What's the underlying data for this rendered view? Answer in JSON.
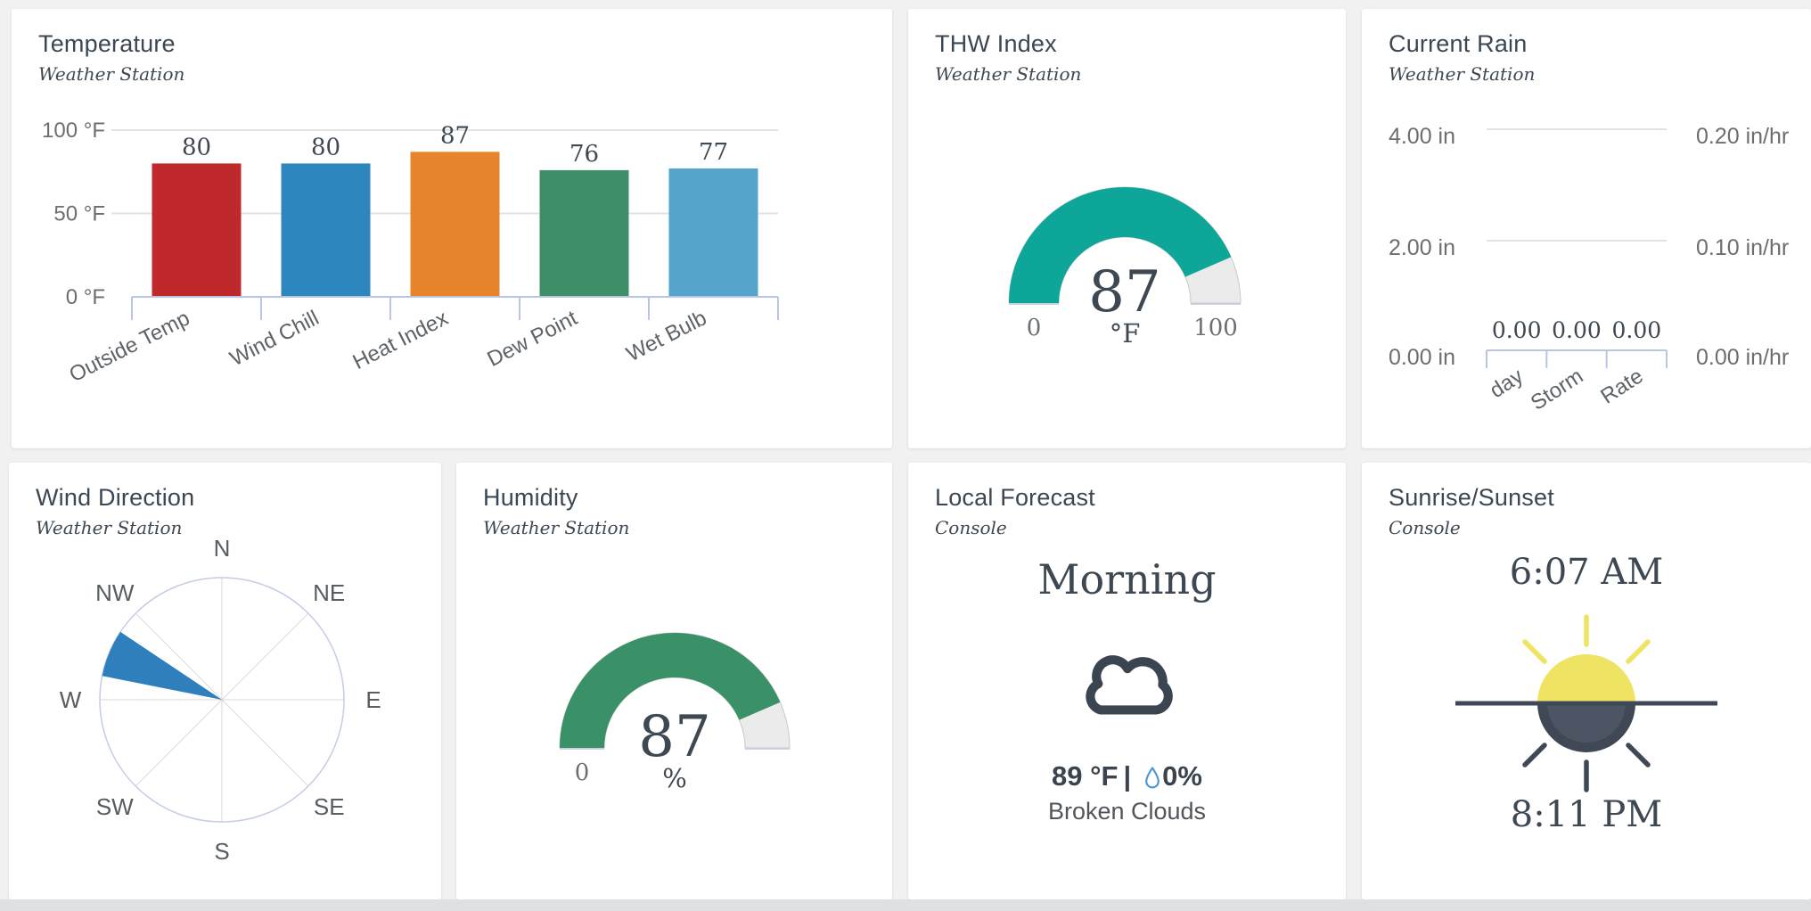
{
  "page": {
    "background_color": "#f1f1f2",
    "bottom_strip_color": "#dfe0e2",
    "card_color": "#ffffff",
    "title_color": "#3c4754",
    "value_color": "#3d4852",
    "axis_label_color": "#6d6e70",
    "axis_line_color": "#b9c6e3"
  },
  "cards": {
    "temperature": {
      "title": "Temperature",
      "subtitle": "Weather Station",
      "chart": {
        "type": "bar",
        "max": 100,
        "y_ticks": [
          {
            "label": "0 °F",
            "value": 0
          },
          {
            "label": "50 °F",
            "value": 50
          },
          {
            "label": "100 °F",
            "value": 100
          }
        ],
        "categories": [
          "Outside Temp",
          "Wind Chill",
          "Heat Index",
          "Dew Point",
          "Wet Bulb"
        ],
        "values": [
          80,
          80,
          87,
          76,
          77
        ],
        "colors": [
          "#c0292c",
          "#2e86bf",
          "#e8852c",
          "#3e8e68",
          "#55a4cb"
        ]
      }
    },
    "thw_index": {
      "title": "THW Index",
      "subtitle": "Weather Station",
      "gauge": {
        "value": 87,
        "min": 0,
        "max": 100,
        "unit": "°F",
        "min_label": "0",
        "max_label": "100",
        "fill_color": "#0fa69a",
        "track_color": "#ebebeb"
      }
    },
    "current_rain": {
      "title": "Current Rain",
      "subtitle": "Weather Station",
      "chart": {
        "rows": [
          {
            "left": "4.00 in",
            "right": "0.20 in/hr"
          },
          {
            "left": "2.00 in",
            "right": "0.10 in/hr"
          },
          {
            "left": "0.00 in",
            "right": "0.00 in/hr"
          }
        ],
        "categories": [
          "day",
          "Storm",
          "Rate"
        ],
        "value_labels": [
          "0.00",
          "0.00",
          "0.00"
        ]
      }
    },
    "wind_direction": {
      "title": "Wind Direction",
      "subtitle": "Weather Station",
      "compass": {
        "directions": [
          "N",
          "NE",
          "E",
          "SE",
          "S",
          "SW",
          "W",
          "NW"
        ],
        "wedge": {
          "from_bearing": 281.25,
          "to_bearing": 303.75,
          "color": "#2e7fbb"
        },
        "circle_color": "#c3cde7"
      }
    },
    "humidity": {
      "title": "Humidity",
      "subtitle": "Weather Station",
      "gauge": {
        "value": 87,
        "min": 0,
        "max": 100,
        "unit": "%",
        "min_label": "0",
        "max_label": null,
        "fill_color": "#3a9168",
        "track_color": "#ebebeb"
      }
    },
    "local_forecast": {
      "title": "Local Forecast",
      "subtitle": "Console",
      "period": "Morning",
      "icon": "cloud-icon",
      "temperature": "89 °F",
      "separator": "|",
      "precip_chance": "0%",
      "condition": "Broken Clouds",
      "drop_color": "#4f97d4",
      "cloud_color": "#3b4552"
    },
    "sunrise_sunset": {
      "title": "Sunrise/Sunset",
      "subtitle": "Console",
      "sunrise": "6:07 AM",
      "sunset": "8:11 PM",
      "sun_yellow": "#efe363",
      "sun_dark": "#3f4856"
    }
  },
  "chart_data": [
    {
      "type": "bar",
      "title": "Temperature",
      "categories": [
        "Outside Temp",
        "Wind Chill",
        "Heat Index",
        "Dew Point",
        "Wet Bulb"
      ],
      "values": [
        80,
        80,
        87,
        76,
        77
      ],
      "ylabel": "°F",
      "ylim": [
        0,
        100
      ],
      "yticks": [
        "0 °F",
        "50 °F",
        "100 °F"
      ],
      "bar_colors": [
        "#c0292c",
        "#2e86bf",
        "#e8852c",
        "#3e8e68",
        "#55a4cb"
      ],
      "grid": true
    },
    {
      "type": "gauge",
      "title": "THW Index",
      "value": 87,
      "min": 0,
      "max": 100,
      "unit": "°F",
      "color": "#0fa69a"
    },
    {
      "type": "bar",
      "title": "Current Rain",
      "categories": [
        "day",
        "Storm",
        "Rate"
      ],
      "values": [
        0.0,
        0.0,
        0.0
      ],
      "data_labels": [
        "0.00",
        "0.00",
        "0.00"
      ],
      "left_axis": {
        "unit": "in",
        "ticks": [
          "0.00 in",
          "2.00 in",
          "4.00 in"
        ],
        "ylim": [
          0,
          4
        ]
      },
      "right_axis": {
        "unit": "in/hr",
        "ticks": [
          "0.00 in/hr",
          "0.10 in/hr",
          "0.20 in/hr"
        ],
        "ylim": [
          0,
          0.2
        ]
      },
      "grid": true
    },
    {
      "type": "rose",
      "title": "Wind Direction",
      "directions": [
        "N",
        "NE",
        "E",
        "SE",
        "S",
        "SW",
        "W",
        "NW"
      ],
      "active_sector": {
        "name": "WNW",
        "from_bearing": 281.25,
        "to_bearing": 303.75,
        "magnitude": 1.0
      },
      "color": "#2e7fbb"
    },
    {
      "type": "gauge",
      "title": "Humidity",
      "value": 87,
      "min": 0,
      "max": 100,
      "unit": "%",
      "color": "#3a9168"
    }
  ]
}
